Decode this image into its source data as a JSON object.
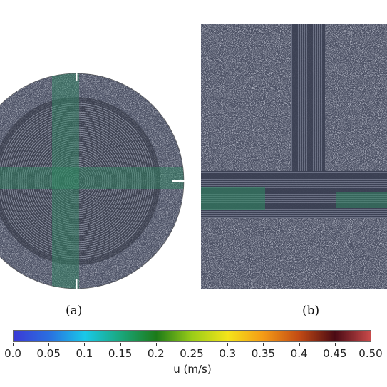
{
  "panels": [
    {
      "caption": "(a)",
      "shape": "circle"
    },
    {
      "caption": "(b)",
      "shape": "rectangle"
    }
  ],
  "colorbar": {
    "label": "u (m/s)",
    "ticks": [
      "0.0",
      "0.05",
      "0.1",
      "0.15",
      "0.2",
      "0.25",
      "0.3",
      "0.35",
      "0.4",
      "0.45",
      "0.50"
    ],
    "range": [
      0.0,
      0.5
    ],
    "colormap": [
      "#3b3ad6",
      "#2a6fe0",
      "#19c8e8",
      "#1aa77c",
      "#1c7a18",
      "#9acd18",
      "#f4e41a",
      "#f49a16",
      "#c24a14",
      "#4a0a14",
      "#c94a4a"
    ]
  },
  "colors": {
    "noise_bg": "#4a4f62",
    "flow_green": "#2f8a62",
    "ring_dark": "#2b2f3d",
    "wall_mark": "#ffffff"
  }
}
